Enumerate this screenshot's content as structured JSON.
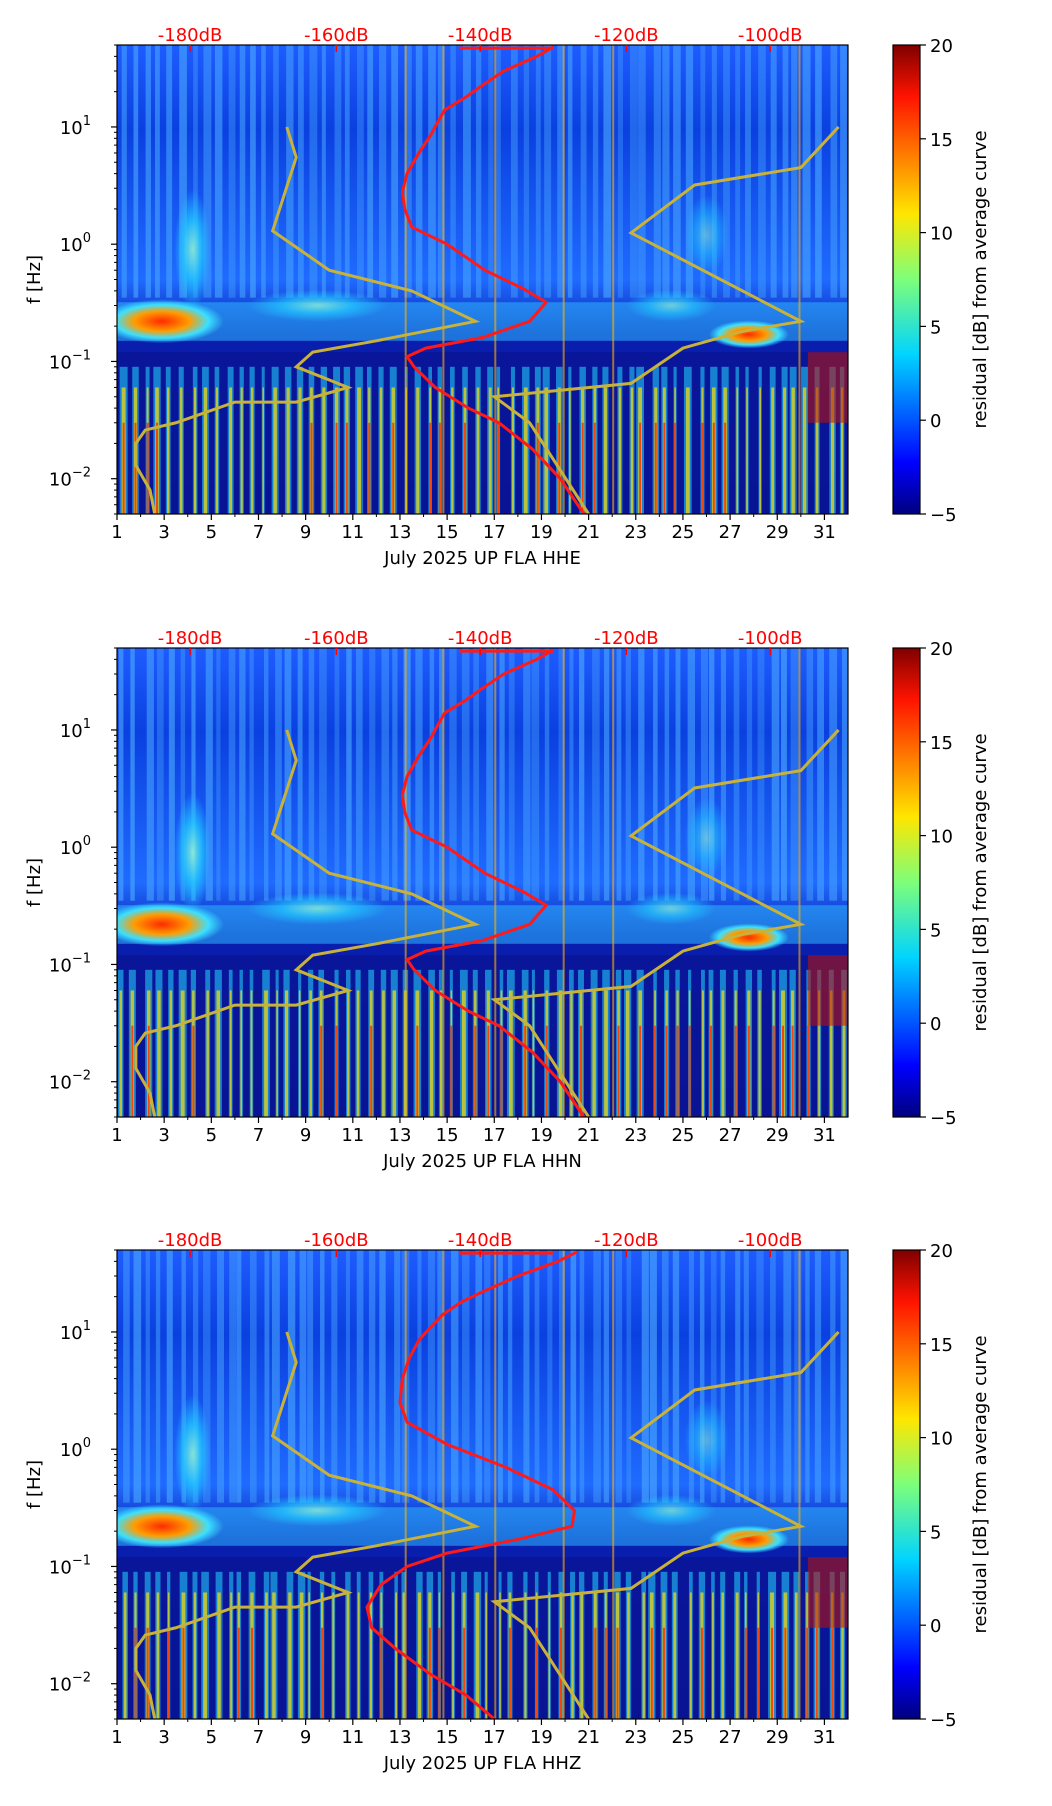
{
  "chart_data": [
    {
      "type": "heatmap",
      "title": "",
      "xlabel": "July 2025 UP FLA  HHE",
      "ylabel": "f [Hz]",
      "xlim": [
        1,
        32
      ],
      "ylim": [
        0.005,
        50
      ],
      "yscale": "log",
      "x_ticks": [
        "1",
        "3",
        "5",
        "7",
        "9",
        "11",
        "13",
        "15",
        "17",
        "19",
        "21",
        "23",
        "25",
        "27",
        "29",
        "31"
      ],
      "y_ticks": [
        {
          "base": "10",
          "exp": "1"
        },
        {
          "base": "10",
          "exp": "0"
        },
        {
          "base": "10",
          "exp": "−1"
        },
        {
          "base": "10",
          "exp": "−2"
        }
      ],
      "db_labels": [
        "-180dB",
        "-160dB",
        "-140dB",
        "-120dB",
        "-100dB"
      ],
      "colorbar": {
        "label": "residual [dB] from average curve",
        "range": [
          -5,
          20
        ],
        "ticks": [
          "20",
          "15",
          "10",
          "5",
          "0",
          "−5"
        ]
      },
      "series": [
        {
          "name": "average PSD (red)",
          "color": "#ff1a1a",
          "dbm": [
            -134,
            -136,
            -142,
            -151,
            -143,
            -147
          ]
        },
        {
          "name": "noise model left (yellow)",
          "color": "#c8b23a"
        },
        {
          "name": "noise model right (yellow)",
          "color": "#c8b23a"
        }
      ]
    },
    {
      "type": "heatmap",
      "title": "",
      "xlabel": "July 2025 UP FLA  HHN",
      "ylabel": "f [Hz]",
      "xlim": [
        1,
        32
      ],
      "ylim": [
        0.005,
        50
      ],
      "yscale": "log",
      "x_ticks": [
        "1",
        "3",
        "5",
        "7",
        "9",
        "11",
        "13",
        "15",
        "17",
        "19",
        "21",
        "23",
        "25",
        "27",
        "29",
        "31"
      ],
      "y_ticks": [
        {
          "base": "10",
          "exp": "1"
        },
        {
          "base": "10",
          "exp": "0"
        },
        {
          "base": "10",
          "exp": "−1"
        },
        {
          "base": "10",
          "exp": "−2"
        }
      ],
      "db_labels": [
        "-180dB",
        "-160dB",
        "-140dB",
        "-120dB",
        "-100dB"
      ],
      "colorbar": {
        "label": "residual [dB] from average curve",
        "range": [
          -5,
          20
        ],
        "ticks": [
          "20",
          "15",
          "10",
          "5",
          "0",
          "−5"
        ]
      },
      "series": [
        {
          "name": "average PSD (red)",
          "color": "#ff1a1a"
        },
        {
          "name": "noise model left (yellow)",
          "color": "#c8b23a"
        },
        {
          "name": "noise model right (yellow)",
          "color": "#c8b23a"
        }
      ]
    },
    {
      "type": "heatmap",
      "title": "",
      "xlabel": "July 2025 UP FLA  HHZ",
      "ylabel": "f [Hz]",
      "xlim": [
        1,
        32
      ],
      "ylim": [
        0.005,
        50
      ],
      "yscale": "log",
      "x_ticks": [
        "1",
        "3",
        "5",
        "7",
        "9",
        "11",
        "13",
        "15",
        "17",
        "19",
        "21",
        "23",
        "25",
        "27",
        "29",
        "31"
      ],
      "y_ticks": [
        {
          "base": "10",
          "exp": "1"
        },
        {
          "base": "10",
          "exp": "0"
        },
        {
          "base": "10",
          "exp": "−1"
        },
        {
          "base": "10",
          "exp": "−2"
        }
      ],
      "db_labels": [
        "-180dB",
        "-160dB",
        "-140dB",
        "-120dB",
        "-100dB"
      ],
      "colorbar": {
        "label": "residual [dB] from average curve",
        "range": [
          -5,
          20
        ],
        "ticks": [
          "20",
          "15",
          "10",
          "5",
          "0",
          "−5"
        ]
      },
      "series": [
        {
          "name": "average PSD (red)",
          "color": "#ff1a1a"
        },
        {
          "name": "noise model left (yellow)",
          "color": "#c8b23a"
        },
        {
          "name": "noise model right (yellow)",
          "color": "#c8b23a"
        }
      ]
    }
  ]
}
